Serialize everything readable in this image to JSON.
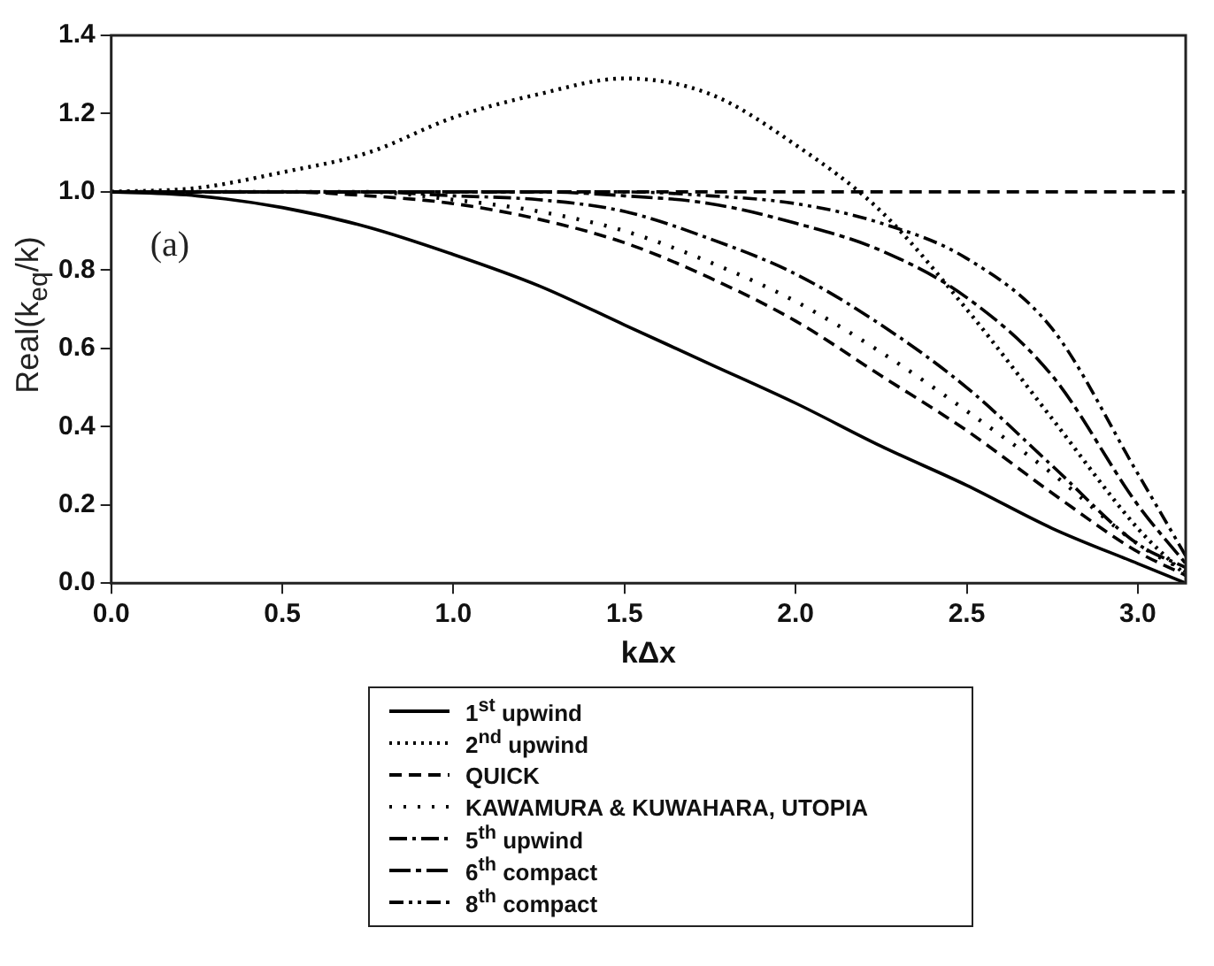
{
  "chart_data": {
    "type": "line",
    "xlabel": "kΔx",
    "ylabel": "Real(k$_{eq}$/k)",
    "x": [
      0,
      0.25,
      0.5,
      0.75,
      1.0,
      1.25,
      1.5,
      1.75,
      2.0,
      2.25,
      2.5,
      2.75,
      3.0,
      3.14
    ],
    "series": [
      {
        "name": "1$^{st}$ upwind",
        "color": "#000000",
        "line_style": "solid",
        "values": [
          1,
          0.99,
          0.96,
          0.91,
          0.84,
          0.76,
          0.66,
          0.56,
          0.46,
          0.35,
          0.25,
          0.14,
          0.05,
          0
        ]
      },
      {
        "name": "2$^{nd}$ upwind",
        "color": "#000000",
        "line_style": "dotted",
        "values": [
          1,
          1.01,
          1.05,
          1.1,
          1.19,
          1.25,
          1.29,
          1.25,
          1.12,
          0.95,
          0.7,
          0.42,
          0.14,
          0.02
        ]
      },
      {
        "name": "QUICK",
        "color": "#000000",
        "line_style": "dashed",
        "values": [
          1,
          1,
          1,
          0.99,
          0.97,
          0.93,
          0.87,
          0.78,
          0.67,
          0.53,
          0.39,
          0.23,
          0.08,
          0.02
        ]
      },
      {
        "name": "KAWAMURA & KUWAHARA, UTOPIA",
        "color": "#000000",
        "line_style": "dotted",
        "values": [
          1,
          1,
          1,
          1,
          0.98,
          0.95,
          0.9,
          0.82,
          0.72,
          0.59,
          0.44,
          0.28,
          0.1,
          0.03
        ]
      },
      {
        "name": "5$^{th}$ upwind",
        "color": "#000000",
        "line_style": "dashed",
        "values": [
          1,
          1,
          1,
          1,
          0.99,
          0.98,
          0.95,
          0.88,
          0.79,
          0.66,
          0.5,
          0.3,
          0.1,
          0.04
        ]
      },
      {
        "name": "6$^{th}$ compact",
        "color": "#000000",
        "line_style": "dashed",
        "values": [
          1,
          1,
          1,
          1,
          1,
          1,
          0.99,
          0.97,
          0.92,
          0.85,
          0.73,
          0.53,
          0.2,
          0.05
        ]
      },
      {
        "name": "8$^{th}$ compact",
        "color": "#000000",
        "line_style": "dashed",
        "values": [
          1,
          1,
          1,
          1,
          1,
          1,
          1,
          0.99,
          0.97,
          0.92,
          0.83,
          0.65,
          0.28,
          0.07
        ]
      }
    ],
    "xlim": [
      0,
      3.14
    ],
    "xticks": [
      {
        "value": 0,
        "label": "0.0"
      },
      {
        "value": 0.5,
        "label": "0.5"
      },
      {
        "value": 1,
        "label": "1.0"
      },
      {
        "value": 1.5,
        "label": "1.5"
      },
      {
        "value": 2,
        "label": "2.0"
      },
      {
        "value": 2.5,
        "label": "2.5"
      },
      {
        "value": 3,
        "label": "3.0"
      }
    ],
    "ylim": [
      0,
      1.4
    ],
    "yticks": [
      {
        "value": 0,
        "label": "0.0"
      },
      {
        "value": 0.2,
        "label": "0.2"
      },
      {
        "value": 0.4,
        "label": "0.4"
      },
      {
        "value": 0.6,
        "label": "0.6"
      },
      {
        "value": 0.8,
        "label": "0.8"
      },
      {
        "value": 1,
        "label": "1.0"
      },
      {
        "value": 1.2,
        "label": "1.2"
      },
      {
        "value": 1.4,
        "label": "1.4"
      }
    ],
    "ref_lines": [
      {
        "axis": "y",
        "value": 1,
        "color": "#000000",
        "line_style": "dashed"
      }
    ],
    "annotations": [
      "(a)"
    ],
    "grid": false,
    "legend": "bottom",
    "marker": "none"
  }
}
